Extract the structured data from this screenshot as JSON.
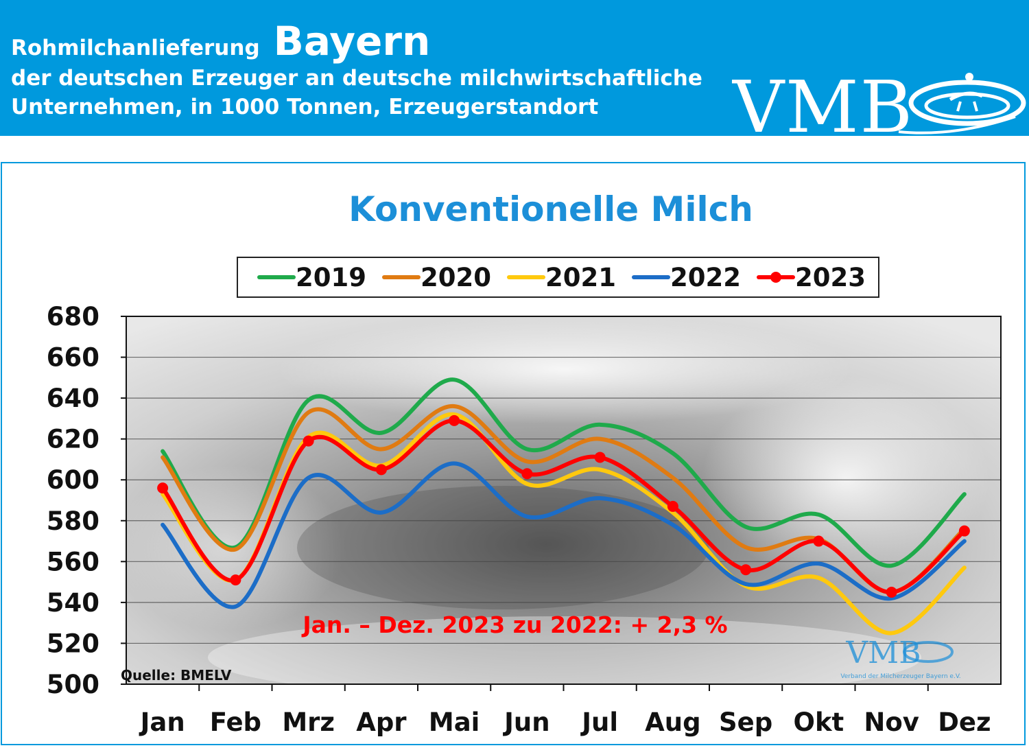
{
  "header": {
    "title_prefix": "Rohmilchanlieferung",
    "title_region": "Bayern",
    "subtitle_line1": "der deutschen Erzeuger an deutsche milchwirtschaftliche",
    "subtitle_line2": "Unternehmen, in 1000 Tonnen, Erzeugerstandort",
    "logo_text": "VMB",
    "background_color": "#0099dd"
  },
  "chart_data": {
    "type": "line",
    "title": "Konventionelle Milch",
    "categories": [
      "Jan",
      "Feb",
      "Mrz",
      "Apr",
      "Mai",
      "Jun",
      "Jul",
      "Aug",
      "Sep",
      "Okt",
      "Nov",
      "Dez"
    ],
    "ylim": [
      500,
      680
    ],
    "yticks": [
      500,
      520,
      540,
      560,
      580,
      600,
      620,
      640,
      660,
      680
    ],
    "grid": true,
    "legend_position": "top-center",
    "series": [
      {
        "name": "2019",
        "color": "#1faa4b",
        "markers": false,
        "values": [
          614,
          567,
          639,
          623,
          649,
          615,
          627,
          613,
          577,
          583,
          558,
          593
        ]
      },
      {
        "name": "2020",
        "color": "#e07b12",
        "markers": false,
        "values": [
          611,
          566,
          633,
          615,
          636,
          609,
          620,
          601,
          567,
          571,
          545,
          576
        ]
      },
      {
        "name": "2021",
        "color": "#ffc90e",
        "markers": false,
        "values": [
          593,
          551,
          621,
          607,
          632,
          598,
          605,
          584,
          548,
          552,
          525,
          557
        ]
      },
      {
        "name": "2022",
        "color": "#1c6dc7",
        "markers": false,
        "values": [
          578,
          538,
          601,
          584,
          608,
          582,
          591,
          578,
          549,
          559,
          542,
          570
        ]
      },
      {
        "name": "2023",
        "color": "#ff0000",
        "markers": true,
        "values": [
          596,
          551,
          619,
          605,
          629,
          603,
          611,
          587,
          556,
          570,
          545,
          575
        ]
      }
    ],
    "annotation": "Jan. – Dez. 2023 zu 2022: + 2,3 %",
    "source": "Quelle: BMELV",
    "watermark_logo": "VMB",
    "watermark_caption": "Verband der Milcherzeuger Bayern e.V."
  }
}
